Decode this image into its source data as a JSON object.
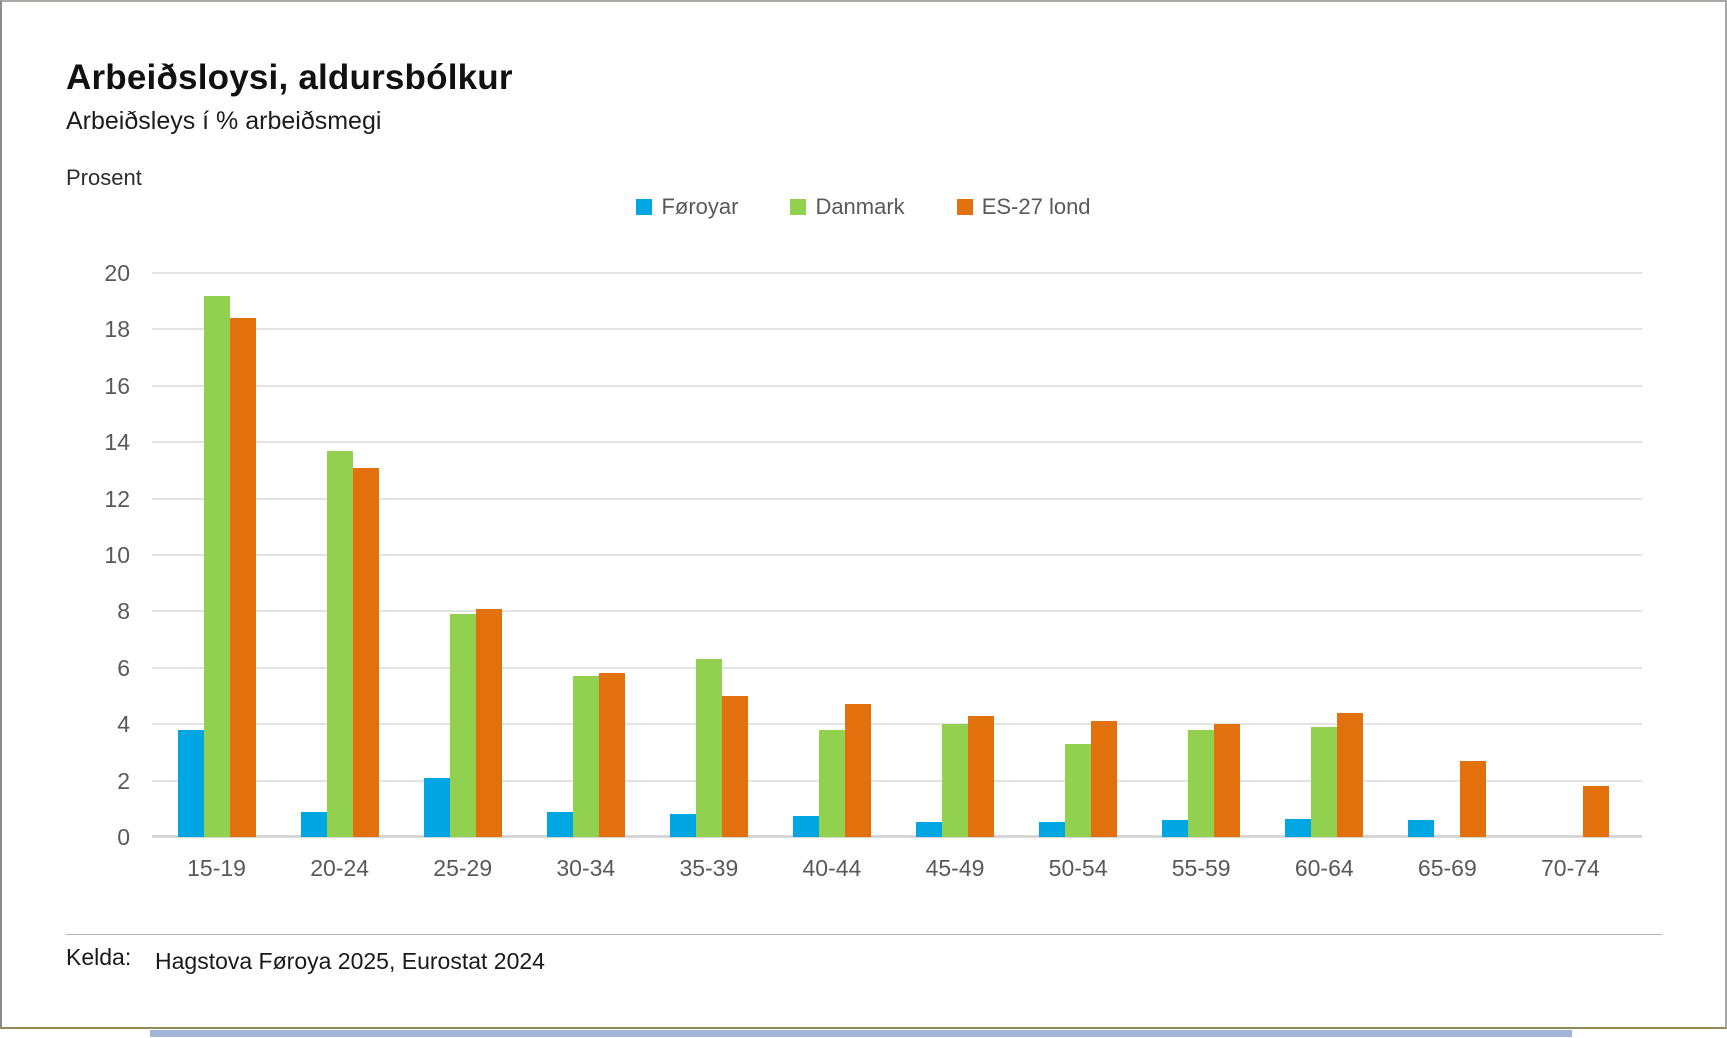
{
  "header": {
    "title": "Arbeiðsloysi, aldursbólkur",
    "subtitle": "Arbeiðsleys í % arbeiðsmegi",
    "y_axis_unit": "Prosent"
  },
  "footer": {
    "source_label": "Kelda:",
    "source_text": "Hagstova Føroya 2025, Eurostat 2024"
  },
  "chart_data": {
    "type": "bar",
    "title": "Arbeiðsloysi, aldursbólkur",
    "subtitle": "Arbeiðsleys í % arbeiðsmegi",
    "ylabel": "Prosent",
    "xlabel": "",
    "ylim": [
      0,
      20
    ],
    "ytick_step": 2,
    "grid": true,
    "legend_position": "top-center",
    "categories": [
      "15-19",
      "20-24",
      "25-29",
      "30-34",
      "35-39",
      "40-44",
      "45-49",
      "50-54",
      "55-59",
      "60-64",
      "65-69",
      "70-74"
    ],
    "series": [
      {
        "name": "Føroyar",
        "color": "#00A6E2",
        "values": [
          3.8,
          0.9,
          2.1,
          0.9,
          0.8,
          0.75,
          0.55,
          0.55,
          0.6,
          0.65,
          0.6,
          0
        ]
      },
      {
        "name": "Danmark",
        "color": "#92D04F",
        "values": [
          19.2,
          13.7,
          7.9,
          5.7,
          6.3,
          3.8,
          4.0,
          3.3,
          3.8,
          3.9,
          0,
          0
        ]
      },
      {
        "name": "ES-27 lond",
        "color": "#E2700C",
        "values": [
          18.4,
          13.1,
          8.1,
          5.8,
          5.0,
          4.7,
          4.3,
          4.1,
          4.0,
          4.4,
          2.7,
          1.8
        ]
      }
    ]
  },
  "colors": {
    "gridline": "#e3e3e3",
    "axis_line": "#d6d6d6",
    "tick_text": "#595959",
    "bottom_strip": "#a2b4d8"
  }
}
